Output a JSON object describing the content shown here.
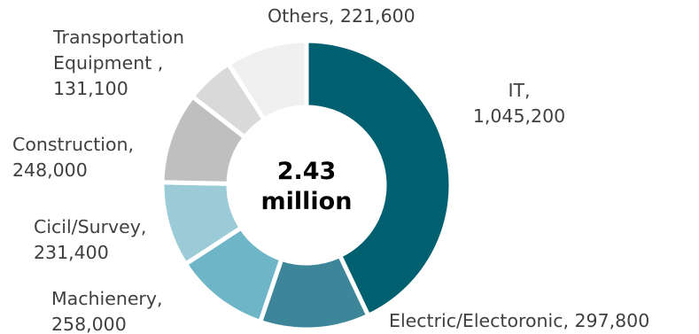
{
  "chart_data": {
    "type": "pie",
    "center_label": [
      "2.43",
      "million"
    ],
    "categories": [
      "IT",
      "Electric/Electoronic",
      "Machienery",
      "Cicil/Survey",
      "Construction",
      "Transportation Equipment",
      "Others"
    ],
    "values": [
      1045200,
      297800,
      258000,
      231400,
      248000,
      131100,
      221600
    ],
    "labels": [
      [
        "IT,",
        "1,045,200"
      ],
      [
        "Electric/Electoronic, 297,800"
      ],
      [
        "Machienery,",
        "258,000"
      ],
      [
        "Cicil/Survey,",
        "231,400"
      ],
      [
        "Construction,",
        "248,000"
      ],
      [
        "Transportation",
        "Equipment ,",
        "131,100"
      ],
      [
        "Others, 221,600"
      ]
    ],
    "colors": [
      "#00606f",
      "#3d8699",
      "#6fb5c8",
      "#9ccbd8",
      "#bfbfbf",
      "#d9d9d9",
      "#f0f0f0"
    ]
  }
}
